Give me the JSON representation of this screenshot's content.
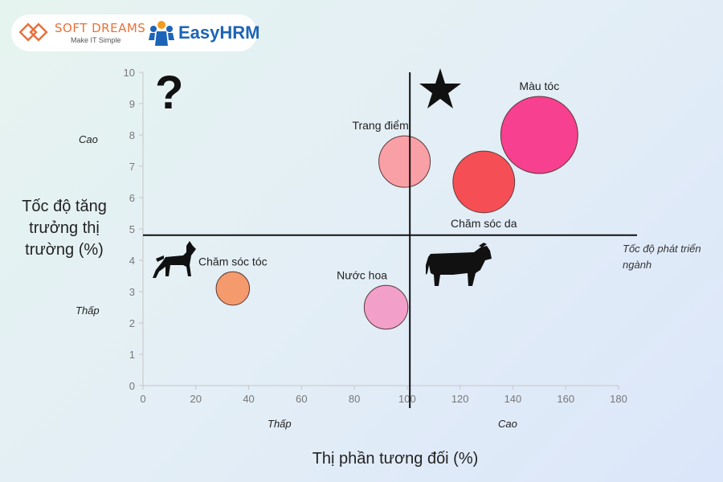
{
  "brand": {
    "softdreams_name": "SOFT DREAMS",
    "softdreams_tagline": "Make IT Simple",
    "easyhrm_name": "EasyHRM",
    "softdreams_color": "#e8713a",
    "easyhrm_color": "#1d64b8"
  },
  "y_axis_label": "Tốc độ tăng trưởng thị trường (%)",
  "x_axis_label": "Thị phần tương đối (%)",
  "y_levels": {
    "high": "Cao",
    "low": "Thấp"
  },
  "x_levels": {
    "low": "Thấp",
    "high": "Cao"
  },
  "industry_line_label": "Tốc độ phát triển ngành",
  "quadrant_icons": {
    "top_left": "question-mark",
    "top_right": "star-icon",
    "bottom_left": "dog-icon",
    "bottom_right": "cow-icon",
    "question_symbol": "?"
  },
  "chart_data": {
    "type": "scatter",
    "x_ticks": [
      0,
      20,
      40,
      60,
      80,
      100,
      120,
      140,
      160,
      180
    ],
    "y_ticks": [
      0,
      1,
      2,
      3,
      4,
      5,
      6,
      7,
      8,
      9,
      10
    ],
    "xlim": [
      0,
      180
    ],
    "ylim": [
      0,
      10
    ],
    "divider_x": 101,
    "divider_y": 4.8,
    "points": [
      {
        "label": "Màu tóc",
        "x": 150,
        "y": 8.0,
        "size": 3,
        "color": "#f7408f"
      },
      {
        "label": "Trang điểm",
        "x": 99,
        "y": 7.15,
        "size": 2,
        "color": "#f9a0a6"
      },
      {
        "label": "Chăm sóc da",
        "x": 129,
        "y": 6.5,
        "size": 2.4,
        "color": "#f54f55"
      },
      {
        "label": "Chăm sóc tóc",
        "x": 34,
        "y": 3.1,
        "size": 1.3,
        "color": "#f49a6c"
      },
      {
        "label": "Nước hoa",
        "x": 92,
        "y": 2.5,
        "size": 1.7,
        "color": "#f2a0ca"
      }
    ],
    "grid": false
  }
}
